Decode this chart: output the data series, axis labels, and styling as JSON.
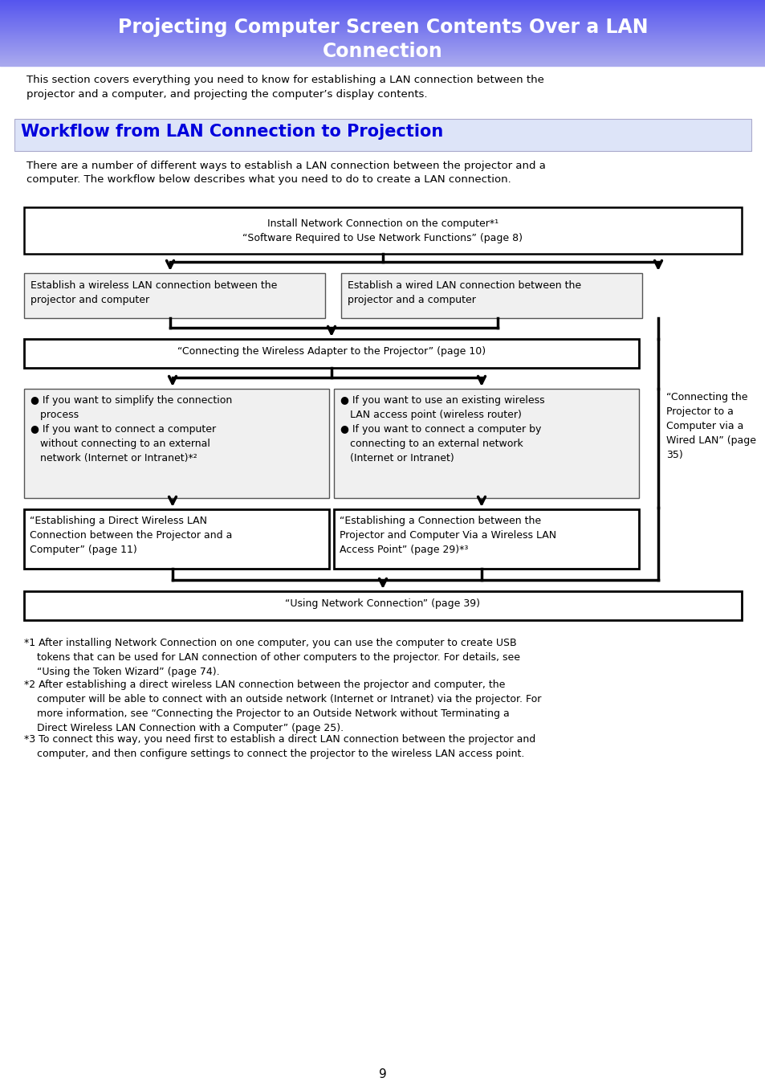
{
  "title_line1": "Projecting Computer Screen Contents Over a LAN",
  "title_line2": "Connection",
  "section_title": "Workflow from LAN Connection to Projection",
  "section_title_color": "#0000dd",
  "section_bg_color": "#dde4f8",
  "intro_text": "This section covers everything you need to know for establishing a LAN connection between the\nprojector and a computer, and projecting the computer’s display contents.",
  "body_text": "There are a number of different ways to establish a LAN connection between the projector and a\ncomputer. The workflow below describes what you need to do to create a LAN connection.",
  "footnote1_label": "*1",
  "footnote1_text": "After installing Network Connection on one computer, you can use the computer to create USB\n    tokens that can be used for LAN connection of other computers to the projector. For details, see\n    “Using the Token Wizard” (page 74).",
  "footnote2_label": "*2",
  "footnote2_text": "After establishing a direct wireless LAN connection between the projector and computer, the\n    computer will be able to connect with an outside network (Internet or Intranet) via the projector. For\n    more information, see “Connecting the Projector to an Outside Network without Terminating a\n    Direct Wireless LAN Connection with a Computer” (page 25).",
  "footnote3_label": "*3",
  "footnote3_text": "To connect this way, you need first to establish a direct LAN connection between the projector and\n    computer, and then configure settings to connect the projector to the wireless LAN access point.",
  "page_number": "9"
}
